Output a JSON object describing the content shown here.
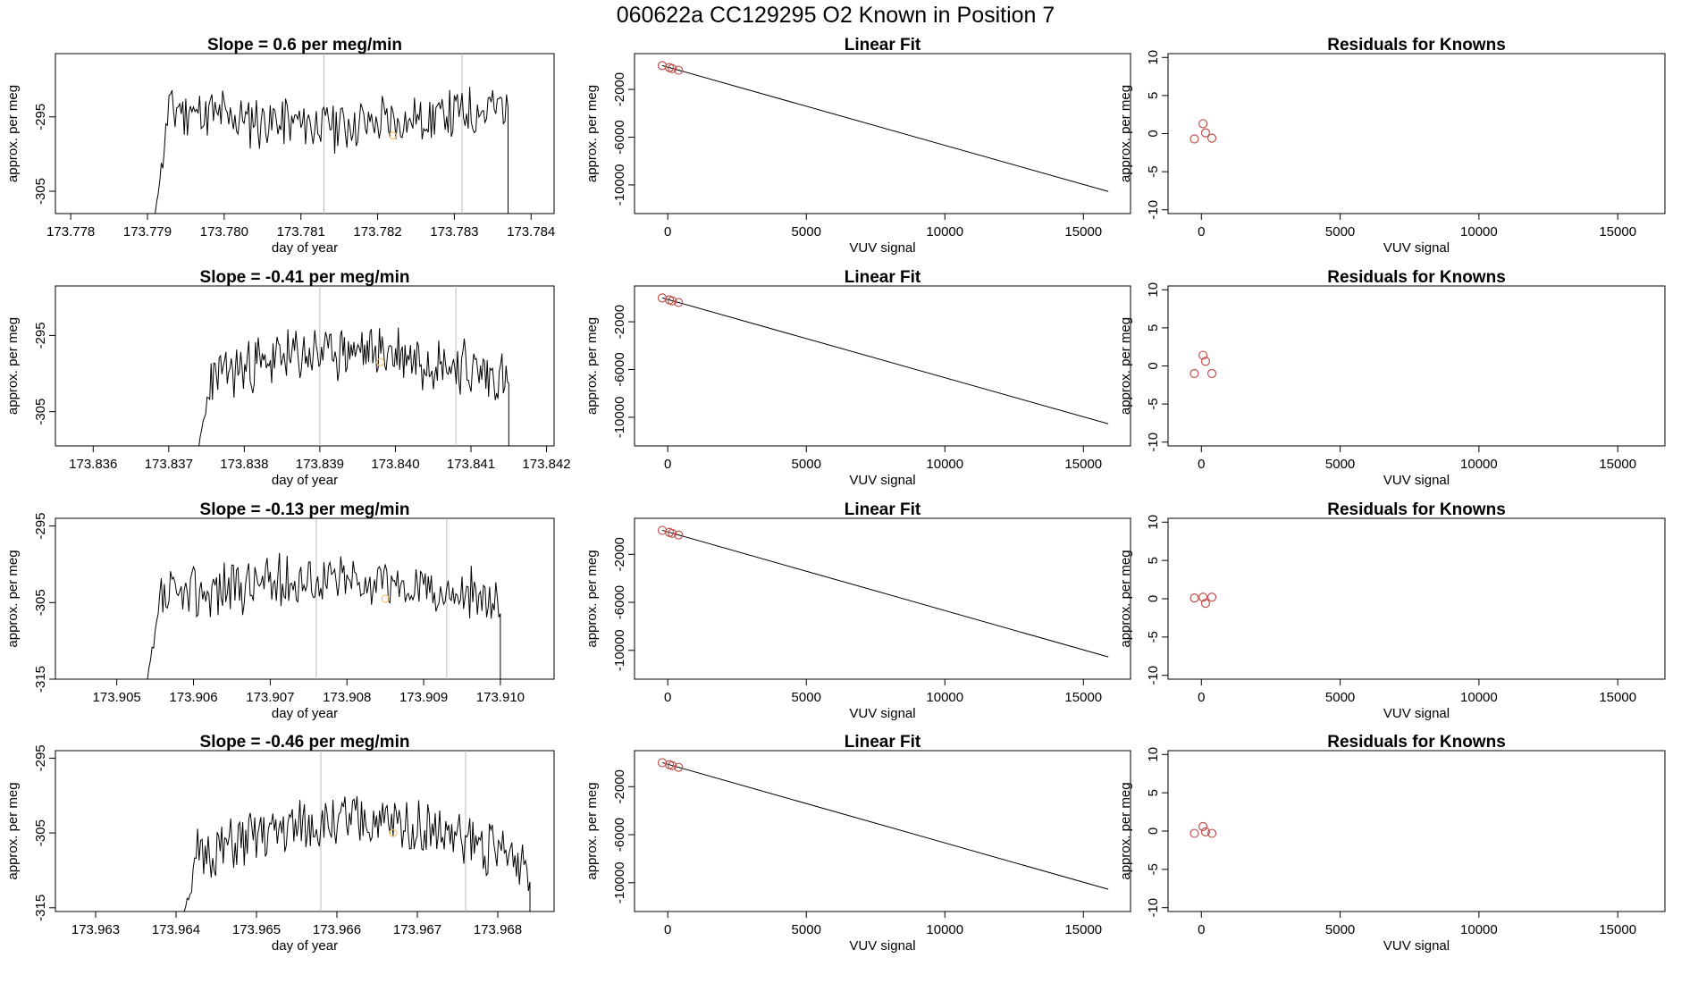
{
  "page": {
    "header": "060622a      CC129295   O2 Known in Position  7",
    "colors": {
      "trace": "#000000",
      "marker": "#f5c26b",
      "points": "#c0504d",
      "line": "#000000",
      "vline": "#bbbbbb"
    }
  },
  "chart_data": [
    {
      "row": 1,
      "type": "line",
      "title": "Slope =  0.6  per meg/min",
      "xlabel": "day of year",
      "ylabel": "approx. per meg",
      "xlim": [
        173.7778,
        173.7843
      ],
      "ylim": [
        -308.0,
        -286.5
      ],
      "xticks": [
        173.778,
        173.779,
        173.78,
        173.781,
        173.782,
        173.783,
        173.784
      ],
      "xtick_labels": [
        "173.778",
        "173.779",
        "173.780",
        "173.781",
        "173.782",
        "173.783",
        "173.784"
      ],
      "yticks": [
        -305,
        -295
      ],
      "ytick_labels": [
        "-305",
        "-295"
      ],
      "vlines": [
        173.7813,
        173.7831
      ],
      "start": 173.7791,
      "end": 173.7837,
      "marker": [
        173.7822,
        -297.5
      ],
      "plateau": [
        -293.5,
        -296.0
      ],
      "noise": 3.0,
      "seed": 11
    },
    {
      "row": 1,
      "type": "scatter_line",
      "title": "Linear Fit",
      "xlabel": "VUV signal",
      "ylabel": "approx. per meg",
      "xlim": [
        -1200,
        16700
      ],
      "ylim": [
        -12400,
        1000
      ],
      "xticks": [
        0,
        5000,
        10000,
        15000
      ],
      "xtick_labels": [
        "0",
        "5000",
        "10000",
        "15000"
      ],
      "yticks": [
        -10000,
        -6000,
        -2000
      ],
      "ytick_labels": [
        "-10000",
        "-6000",
        "-2000"
      ],
      "points": [
        [
          -200,
          0
        ],
        [
          60,
          -170
        ],
        [
          160,
          -250
        ],
        [
          390,
          -390
        ]
      ],
      "line": [
        [
          -200,
          0
        ],
        [
          15900,
          -10550
        ]
      ]
    },
    {
      "row": 1,
      "type": "scatter",
      "title": "Residuals for Knowns",
      "xlabel": "VUV signal",
      "ylabel": "approx. per meg",
      "xlim": [
        -1200,
        16700
      ],
      "ylim": [
        -10.5,
        10.5
      ],
      "xticks": [
        0,
        5000,
        10000,
        15000
      ],
      "xtick_labels": [
        "0",
        "5000",
        "10000",
        "15000"
      ],
      "yticks": [
        -10,
        -5,
        0,
        5,
        10
      ],
      "ytick_labels": [
        "-10",
        "-5",
        "0",
        "5",
        "10"
      ],
      "points": [
        [
          -250,
          -0.7
        ],
        [
          60,
          1.3
        ],
        [
          150,
          0.1
        ],
        [
          380,
          -0.6
        ]
      ]
    },
    {
      "row": 2,
      "type": "line",
      "title": "Slope =  -0.41  per meg/min",
      "xlabel": "day of year",
      "ylabel": "approx. per meg",
      "xlim": [
        173.8355,
        173.8421
      ],
      "ylim": [
        -309.5,
        -288.5
      ],
      "xticks": [
        173.836,
        173.837,
        173.838,
        173.839,
        173.84,
        173.841,
        173.842
      ],
      "xtick_labels": [
        "173.836",
        "173.837",
        "173.838",
        "173.839",
        "173.840",
        "173.841",
        "173.842"
      ],
      "yticks": [
        -305,
        -295
      ],
      "ytick_labels": [
        "-305",
        "-295"
      ],
      "vlines": [
        173.839,
        173.8408
      ],
      "start": 173.8374,
      "end": 173.8415,
      "marker": [
        173.8398,
        -298.5
      ],
      "plateau": [
        -301.0,
        -297.0
      ],
      "noise": 3.0,
      "seed": 23
    },
    {
      "row": 2,
      "type": "scatter_line",
      "title": "Linear Fit",
      "xlabel": "VUV signal",
      "ylabel": "approx. per meg",
      "xlim": [
        -1200,
        16700
      ],
      "ylim": [
        -12400,
        1000
      ],
      "xticks": [
        0,
        5000,
        10000,
        15000
      ],
      "xtick_labels": [
        "0",
        "5000",
        "10000",
        "15000"
      ],
      "yticks": [
        -10000,
        -6000,
        -2000
      ],
      "ytick_labels": [
        "-10000",
        "-6000",
        "-2000"
      ],
      "points": [
        [
          -200,
          0
        ],
        [
          60,
          -170
        ],
        [
          160,
          -250
        ],
        [
          390,
          -390
        ]
      ],
      "line": [
        [
          -200,
          0
        ],
        [
          15900,
          -10550
        ]
      ]
    },
    {
      "row": 2,
      "type": "scatter",
      "title": "Residuals for Knowns",
      "xlabel": "VUV signal",
      "ylabel": "approx. per meg",
      "xlim": [
        -1200,
        16700
      ],
      "ylim": [
        -10.5,
        10.5
      ],
      "xticks": [
        0,
        5000,
        10000,
        15000
      ],
      "xtick_labels": [
        "0",
        "5000",
        "10000",
        "15000"
      ],
      "yticks": [
        -10,
        -5,
        0,
        5,
        10
      ],
      "ytick_labels": [
        "-10",
        "-5",
        "0",
        "5",
        "10"
      ],
      "points": [
        [
          -250,
          -1.0
        ],
        [
          60,
          1.4
        ],
        [
          150,
          0.6
        ],
        [
          380,
          -1.0
        ]
      ]
    },
    {
      "row": 3,
      "type": "line",
      "title": "Slope =  -0.13  per meg/min",
      "xlabel": "day of year",
      "ylabel": "approx. per meg",
      "xlim": [
        173.9042,
        173.9107
      ],
      "ylim": [
        -315.0,
        -294.0
      ],
      "xticks": [
        173.905,
        173.906,
        173.907,
        173.908,
        173.909,
        173.91
      ],
      "xtick_labels": [
        "173.905",
        "173.906",
        "173.907",
        "173.908",
        "173.909",
        "173.910"
      ],
      "yticks": [
        -315,
        -305,
        -295
      ],
      "ytick_labels": [
        "-315",
        "-305",
        "-295"
      ],
      "vlines": [
        173.9076,
        173.9093
      ],
      "start": 173.9054,
      "end": 173.91,
      "marker": [
        173.9085,
        -304.5
      ],
      "plateau": [
        -305.0,
        -302.0
      ],
      "noise": 3.0,
      "seed": 37
    },
    {
      "row": 3,
      "type": "scatter_line",
      "title": "Linear Fit",
      "xlabel": "VUV signal",
      "ylabel": "approx. per meg",
      "xlim": [
        -1200,
        16700
      ],
      "ylim": [
        -12400,
        1000
      ],
      "xticks": [
        0,
        5000,
        10000,
        15000
      ],
      "xtick_labels": [
        "0",
        "5000",
        "10000",
        "15000"
      ],
      "yticks": [
        -10000,
        -6000,
        -2000
      ],
      "ytick_labels": [
        "-10000",
        "-6000",
        "-2000"
      ],
      "points": [
        [
          -200,
          0
        ],
        [
          60,
          -170
        ],
        [
          160,
          -250
        ],
        [
          390,
          -390
        ]
      ],
      "line": [
        [
          -200,
          0
        ],
        [
          15900,
          -10550
        ]
      ]
    },
    {
      "row": 3,
      "type": "scatter",
      "title": "Residuals for Knowns",
      "xlabel": "VUV signal",
      "ylabel": "approx. per meg",
      "xlim": [
        -1200,
        16700
      ],
      "ylim": [
        -10.5,
        10.5
      ],
      "xticks": [
        0,
        5000,
        10000,
        15000
      ],
      "xtick_labels": [
        "0",
        "5000",
        "10000",
        "15000"
      ],
      "yticks": [
        -10,
        -5,
        0,
        5,
        10
      ],
      "ytick_labels": [
        "-10",
        "-5",
        "0",
        "5",
        "10"
      ],
      "points": [
        [
          -250,
          0.1
        ],
        [
          60,
          0.2
        ],
        [
          150,
          -0.6
        ],
        [
          380,
          0.2
        ]
      ]
    },
    {
      "row": 4,
      "type": "line",
      "title": "Slope =  -0.46  per meg/min",
      "xlabel": "day of year",
      "ylabel": "approx. per meg",
      "xlim": [
        173.9625,
        173.9687
      ],
      "ylim": [
        -315.5,
        -294.0
      ],
      "xticks": [
        173.963,
        173.964,
        173.965,
        173.966,
        173.967,
        173.968
      ],
      "xtick_labels": [
        "173.963",
        "173.964",
        "173.965",
        "173.966",
        "173.967",
        "173.968"
      ],
      "yticks": [
        -315,
        -305,
        -295
      ],
      "ytick_labels": [
        "-315",
        "-305",
        "-295"
      ],
      "vlines": [
        173.9658,
        173.9676
      ],
      "start": 173.9641,
      "end": 173.9684,
      "marker": [
        173.9667,
        -305.0
      ],
      "plateau": [
        -309.0,
        -303.5
      ],
      "noise": 3.0,
      "seed": 51
    },
    {
      "row": 4,
      "type": "scatter_line",
      "title": "Linear Fit",
      "xlabel": "VUV signal",
      "ylabel": "approx. per meg",
      "xlim": [
        -1200,
        16700
      ],
      "ylim": [
        -12400,
        1000
      ],
      "xticks": [
        0,
        5000,
        10000,
        15000
      ],
      "xtick_labels": [
        "0",
        "5000",
        "10000",
        "15000"
      ],
      "yticks": [
        -10000,
        -6000,
        -2000
      ],
      "ytick_labels": [
        "-10000",
        "-6000",
        "-2000"
      ],
      "points": [
        [
          -200,
          0
        ],
        [
          60,
          -170
        ],
        [
          160,
          -250
        ],
        [
          390,
          -390
        ]
      ],
      "line": [
        [
          -200,
          0
        ],
        [
          15900,
          -10550
        ]
      ]
    },
    {
      "row": 4,
      "type": "scatter",
      "title": "Residuals for Knowns",
      "xlabel": "VUV signal",
      "ylabel": "approx. per meg",
      "xlim": [
        -1200,
        16700
      ],
      "ylim": [
        -10.5,
        10.5
      ],
      "xticks": [
        0,
        5000,
        10000,
        15000
      ],
      "xtick_labels": [
        "0",
        "5000",
        "10000",
        "15000"
      ],
      "yticks": [
        -10,
        -5,
        0,
        5,
        10
      ],
      "ytick_labels": [
        "-10",
        "-5",
        "0",
        "5",
        "10"
      ],
      "points": [
        [
          -250,
          -0.3
        ],
        [
          60,
          0.6
        ],
        [
          150,
          -0.1
        ],
        [
          380,
          -0.3
        ]
      ]
    }
  ]
}
